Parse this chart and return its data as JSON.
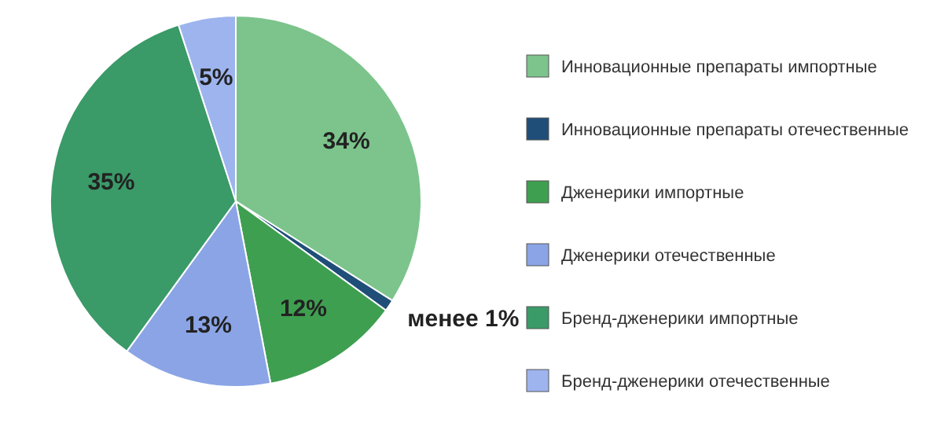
{
  "chart_data": {
    "type": "pie",
    "categories": [
      "Инновационные препараты импортные",
      "Инновационные препараты отечественные",
      "Дженерики импортные",
      "Дженерики отечественные",
      "Бренд-дженерики импортные",
      "Бренд-дженерики отечественные"
    ],
    "values": [
      34,
      1,
      12,
      13,
      35,
      5
    ],
    "value_labels": [
      "34%",
      "менее 1%",
      "12%",
      "13%",
      "35%",
      "5%"
    ],
    "colors": [
      "#7cc48c",
      "#1f4e79",
      "#3f9f50",
      "#8aa4e6",
      "#3a9a68",
      "#9db4ee"
    ],
    "legend": "right"
  }
}
